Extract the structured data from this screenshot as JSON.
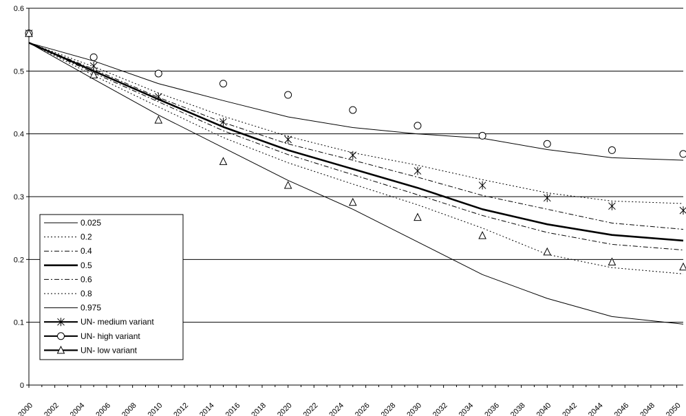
{
  "chart_data": {
    "type": "line",
    "title": "",
    "xlabel": "",
    "ylabel": "",
    "xlim": [
      2000,
      2050.5
    ],
    "ylim": [
      0,
      0.6
    ],
    "x_ticks": [
      "2000",
      "2002",
      "2004",
      "2006",
      "2008",
      "2010",
      "2012",
      "2014",
      "2016",
      "2018",
      "2020",
      "2022",
      "2024",
      "2026",
      "2028",
      "2030",
      "2032",
      "2034",
      "2036",
      "2038",
      "2040",
      "2042",
      "2044",
      "2046",
      "2048",
      "2050"
    ],
    "y_ticks": [
      "0",
      "0.1",
      "0.2",
      "0.3",
      "0.4",
      "0.5",
      "0.6"
    ],
    "grid": "horizontal",
    "legend_position": "left",
    "colors": {
      "line": "#000000",
      "grid": "#000000",
      "background": "#ffffff"
    },
    "series": [
      {
        "name": "0.025",
        "style": "solid",
        "weight": "thin",
        "x": [
          2000,
          2005,
          2010,
          2015,
          2020,
          2025,
          2030,
          2035,
          2040,
          2045,
          2050.5
        ],
        "y": [
          0.545,
          0.516,
          0.48,
          0.453,
          0.427,
          0.41,
          0.4,
          0.393,
          0.375,
          0.362,
          0.358
        ]
      },
      {
        "name": "0.2",
        "style": "dotted",
        "weight": "thin",
        "x": [
          2000,
          2005,
          2010,
          2015,
          2020,
          2025,
          2030,
          2035,
          2040,
          2045,
          2050.5
        ],
        "y": [
          0.545,
          0.507,
          0.465,
          0.428,
          0.396,
          0.37,
          0.35,
          0.327,
          0.306,
          0.293,
          0.289
        ]
      },
      {
        "name": "0.4",
        "style": "dashdot",
        "weight": "thin",
        "x": [
          2000,
          2005,
          2010,
          2015,
          2020,
          2025,
          2030,
          2035,
          2040,
          2045,
          2050.5
        ],
        "y": [
          0.545,
          0.503,
          0.458,
          0.418,
          0.384,
          0.358,
          0.331,
          0.302,
          0.28,
          0.258,
          0.248
        ]
      },
      {
        "name": "0.5",
        "style": "solid",
        "weight": "thick",
        "x": [
          2000,
          2005,
          2010,
          2015,
          2020,
          2025,
          2030,
          2035,
          2040,
          2045,
          2050.5
        ],
        "y": [
          0.545,
          0.5,
          0.455,
          0.411,
          0.374,
          0.344,
          0.314,
          0.28,
          0.256,
          0.239,
          0.23
        ]
      },
      {
        "name": "0.6",
        "style": "dashdot",
        "weight": "thin",
        "x": [
          2000,
          2005,
          2010,
          2015,
          2020,
          2025,
          2030,
          2035,
          2040,
          2045,
          2050.5
        ],
        "y": [
          0.545,
          0.497,
          0.451,
          0.405,
          0.367,
          0.335,
          0.303,
          0.27,
          0.243,
          0.224,
          0.215
        ]
      },
      {
        "name": "0.8",
        "style": "dotted",
        "weight": "thin",
        "x": [
          2000,
          2005,
          2010,
          2015,
          2020,
          2025,
          2030,
          2035,
          2040,
          2045,
          2050.5
        ],
        "y": [
          0.545,
          0.493,
          0.443,
          0.394,
          0.354,
          0.32,
          0.287,
          0.25,
          0.208,
          0.187,
          0.177
        ]
      },
      {
        "name": "0.975",
        "style": "solid",
        "weight": "thin",
        "x": [
          2000,
          2005,
          2010,
          2015,
          2020,
          2025,
          2030,
          2035,
          2040,
          2045,
          2050.5
        ],
        "y": [
          0.545,
          0.487,
          0.43,
          0.378,
          0.326,
          0.28,
          0.228,
          0.176,
          0.138,
          0.109,
          0.097
        ]
      },
      {
        "name": "UN- medium variant",
        "style": "marker-only",
        "marker": "asterisk",
        "x": [
          2000,
          2005,
          2010,
          2015,
          2020,
          2025,
          2030,
          2035,
          2040,
          2045,
          2050.5
        ],
        "y": [
          0.56,
          0.508,
          0.459,
          0.419,
          0.391,
          0.366,
          0.341,
          0.318,
          0.298,
          0.285,
          0.278
        ]
      },
      {
        "name": "UN- high variant",
        "style": "marker-only",
        "marker": "circle",
        "x": [
          2000,
          2005,
          2010,
          2015,
          2020,
          2025,
          2030,
          2035,
          2040,
          2045,
          2050.5
        ],
        "y": [
          0.56,
          0.522,
          0.496,
          0.48,
          0.462,
          0.438,
          0.413,
          0.397,
          0.384,
          0.374,
          0.368
        ]
      },
      {
        "name": "UN- low variant",
        "style": "marker-only",
        "marker": "triangle",
        "x": [
          2000,
          2005,
          2010,
          2015,
          2020,
          2025,
          2030,
          2035,
          2040,
          2045,
          2050.5
        ],
        "y": [
          0.56,
          0.494,
          0.422,
          0.356,
          0.318,
          0.291,
          0.267,
          0.238,
          0.212,
          0.196,
          0.188
        ]
      }
    ]
  }
}
